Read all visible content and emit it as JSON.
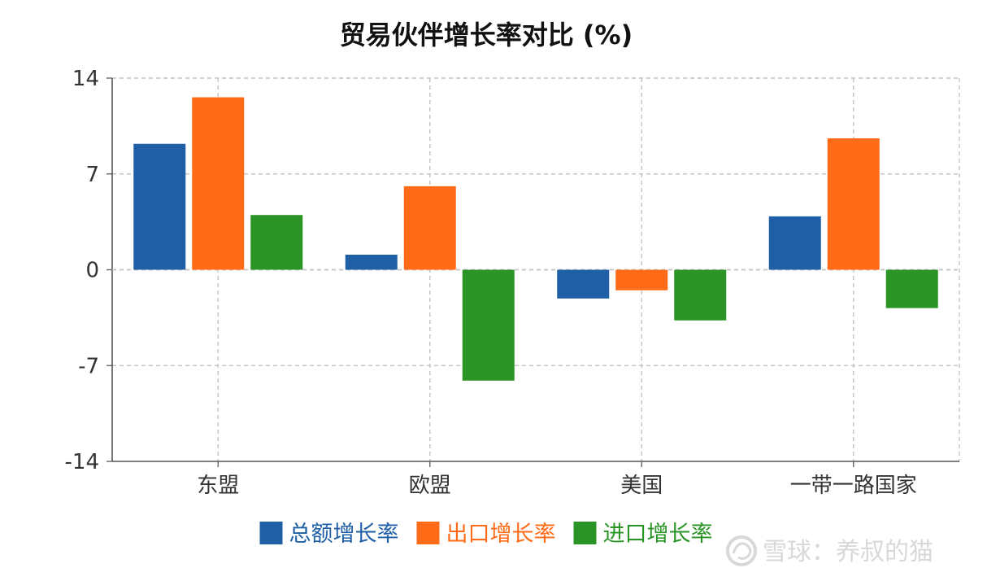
{
  "chart_data": {
    "type": "bar",
    "title": "贸易伙伴增长率对比 (%)",
    "xlabel": "",
    "ylabel": "",
    "categories": [
      "东盟",
      "欧盟",
      "美国",
      "一带一路国家"
    ],
    "series": [
      {
        "name": "总额增长率",
        "color": "#1f5fa6",
        "values": [
          9.2,
          1.1,
          -2.1,
          3.9
        ]
      },
      {
        "name": "出口增长率",
        "color": "#ff6b17",
        "values": [
          12.6,
          6.1,
          -1.5,
          9.6
        ]
      },
      {
        "name": "进口增长率",
        "color": "#2a9427",
        "values": [
          4.0,
          -8.1,
          -3.7,
          -2.8
        ]
      }
    ],
    "ylim": [
      -14,
      14
    ],
    "yticks": [
      14,
      7,
      0,
      -7,
      -14
    ],
    "grid": true,
    "legend_position": "bottom"
  },
  "watermark": {
    "text": "雪球：养叔的猫"
  }
}
